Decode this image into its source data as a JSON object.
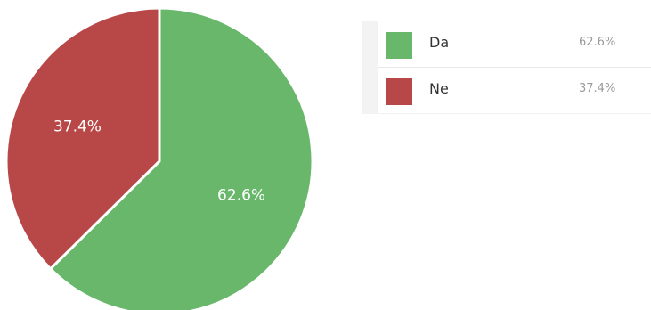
{
  "chart_data": {
    "type": "pie",
    "categories": [
      "Da",
      "Ne"
    ],
    "values": [
      62.6,
      37.4
    ],
    "labels": [
      "62.6%",
      "37.4%"
    ],
    "colors": [
      "#68b76b",
      "#b84848"
    ],
    "title": "",
    "legend_position": "right"
  },
  "legend": {
    "items": [
      {
        "name": "Da",
        "value": "62.6%",
        "color": "#68b76b"
      },
      {
        "name": "Ne",
        "value": "37.4%",
        "color": "#b84848"
      }
    ]
  }
}
